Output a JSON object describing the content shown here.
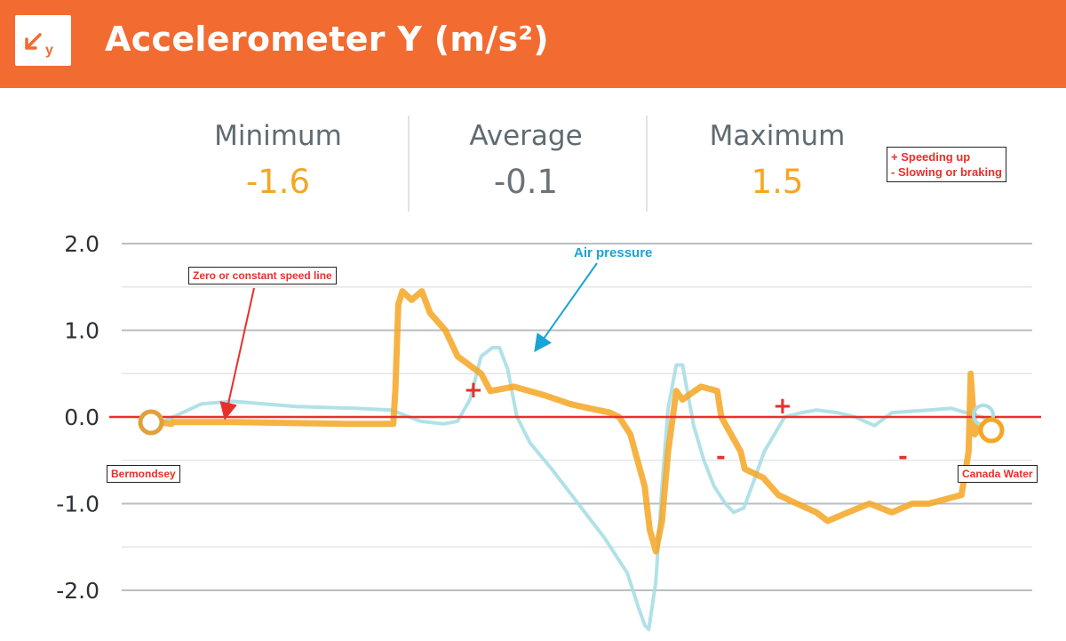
{
  "header": {
    "title": "Accelerometer Y (m/s²)",
    "icon": "accelerometer-y-icon",
    "icon_text": "y",
    "color": "#f26b31"
  },
  "stats": {
    "minimum": {
      "label": "Minimum",
      "value": "-1.6",
      "color": "#f5a623"
    },
    "average": {
      "label": "Average",
      "value": "-0.1",
      "color": "#6b7278"
    },
    "maximum": {
      "label": "Maximum",
      "value": "1.5",
      "color": "#f5a623"
    }
  },
  "legend": {
    "line1": "+ Speeding up",
    "line2": "- Slowing or braking"
  },
  "annotations": {
    "zero_line": "Zero or constant speed line",
    "air_pressure": "Air pressure",
    "start": "Bermondsey",
    "end": "Canada Water",
    "plus": "+",
    "minus": "-"
  },
  "chart_data": {
    "type": "line",
    "title": "Accelerometer Y (m/s²)",
    "ylim": [
      -2.5,
      2.0
    ],
    "yticks": [
      2.0,
      1.0,
      0.0,
      -1.0,
      -2.0
    ],
    "ytick_labels": [
      "2.0",
      "1.0",
      "0.0",
      "-1.0",
      "-2.0"
    ],
    "grid": true,
    "zero_line_color": "#e8302a",
    "series": [
      {
        "name": "Accelerometer Y",
        "color": "#f5a623",
        "x": [
          0.0,
          2.0,
          2.1,
          8.0,
          19.2,
          23.7,
          23.9,
          24.2,
          24.6,
          25.5,
          26.5,
          27.3,
          28.8,
          30.0,
          32.3,
          33.2,
          35.5,
          38.5,
          41.0,
          42.9,
          44.9,
          45.8,
          46.9,
          47.6,
          48.3,
          48.8,
          49.4,
          50.0,
          50.6,
          51.4,
          52.0,
          53.8,
          55.4,
          55.8,
          57.7,
          58.1,
          59.9,
          61.4,
          63.2,
          65.1,
          66.2,
          68.2,
          70.3,
          72.5,
          74.5,
          76.1,
          79.3,
          80.0,
          80.2,
          80.6,
          81.1,
          81.7,
          82.4
        ],
        "y": [
          -0.05,
          -0.08,
          -0.06,
          -0.06,
          -0.08,
          -0.08,
          0.3,
          1.3,
          1.45,
          1.35,
          1.45,
          1.2,
          1.0,
          0.7,
          0.5,
          0.3,
          0.35,
          0.25,
          0.15,
          0.1,
          0.05,
          0.0,
          -0.2,
          -0.5,
          -0.8,
          -1.3,
          -1.55,
          -1.2,
          -0.4,
          0.3,
          0.2,
          0.35,
          0.3,
          0.0,
          -0.4,
          -0.6,
          -0.7,
          -0.9,
          -1.0,
          -1.1,
          -1.2,
          -1.1,
          -1.0,
          -1.1,
          -1.0,
          -1.0,
          -0.9,
          -0.4,
          0.5,
          -0.2,
          -0.1,
          -0.1,
          -0.15
        ]
      },
      {
        "name": "Air pressure",
        "color": "#a9dee6",
        "x": [
          0.0,
          1.2,
          3.1,
          4.9,
          8.0,
          14.2,
          20.0,
          23.5,
          26.4,
          28.6,
          30.0,
          31.2,
          32.3,
          33.4,
          34.1,
          34.9,
          35.8,
          37.1,
          39.2,
          41.8,
          44.4,
          46.6,
          47.7,
          48.3,
          48.7,
          49.4,
          50.0,
          50.6,
          51.4,
          52.0,
          53.1,
          54.1,
          55.1,
          56.2,
          57.0,
          58.0,
          59.1,
          60.0,
          61.0,
          62.0,
          63.7,
          65.1,
          67.1,
          68.9,
          70.8,
          72.5,
          76.1,
          78.3,
          79.7,
          81.3,
          82.4
        ],
        "y": [
          -0.1,
          -0.05,
          0.05,
          0.15,
          0.18,
          0.12,
          0.1,
          0.08,
          -0.05,
          -0.08,
          -0.05,
          0.2,
          0.7,
          0.8,
          0.8,
          0.55,
          0.0,
          -0.3,
          -0.6,
          -1.0,
          -1.4,
          -1.8,
          -2.2,
          -2.4,
          -2.45,
          -1.9,
          -0.8,
          0.1,
          0.6,
          0.6,
          -0.1,
          -0.5,
          -0.8,
          -1.0,
          -1.1,
          -1.05,
          -0.7,
          -0.4,
          -0.2,
          0.0,
          0.05,
          0.08,
          0.05,
          0.0,
          -0.1,
          0.05,
          0.08,
          0.1,
          0.05,
          0.0,
          -0.05
        ]
      }
    ]
  }
}
